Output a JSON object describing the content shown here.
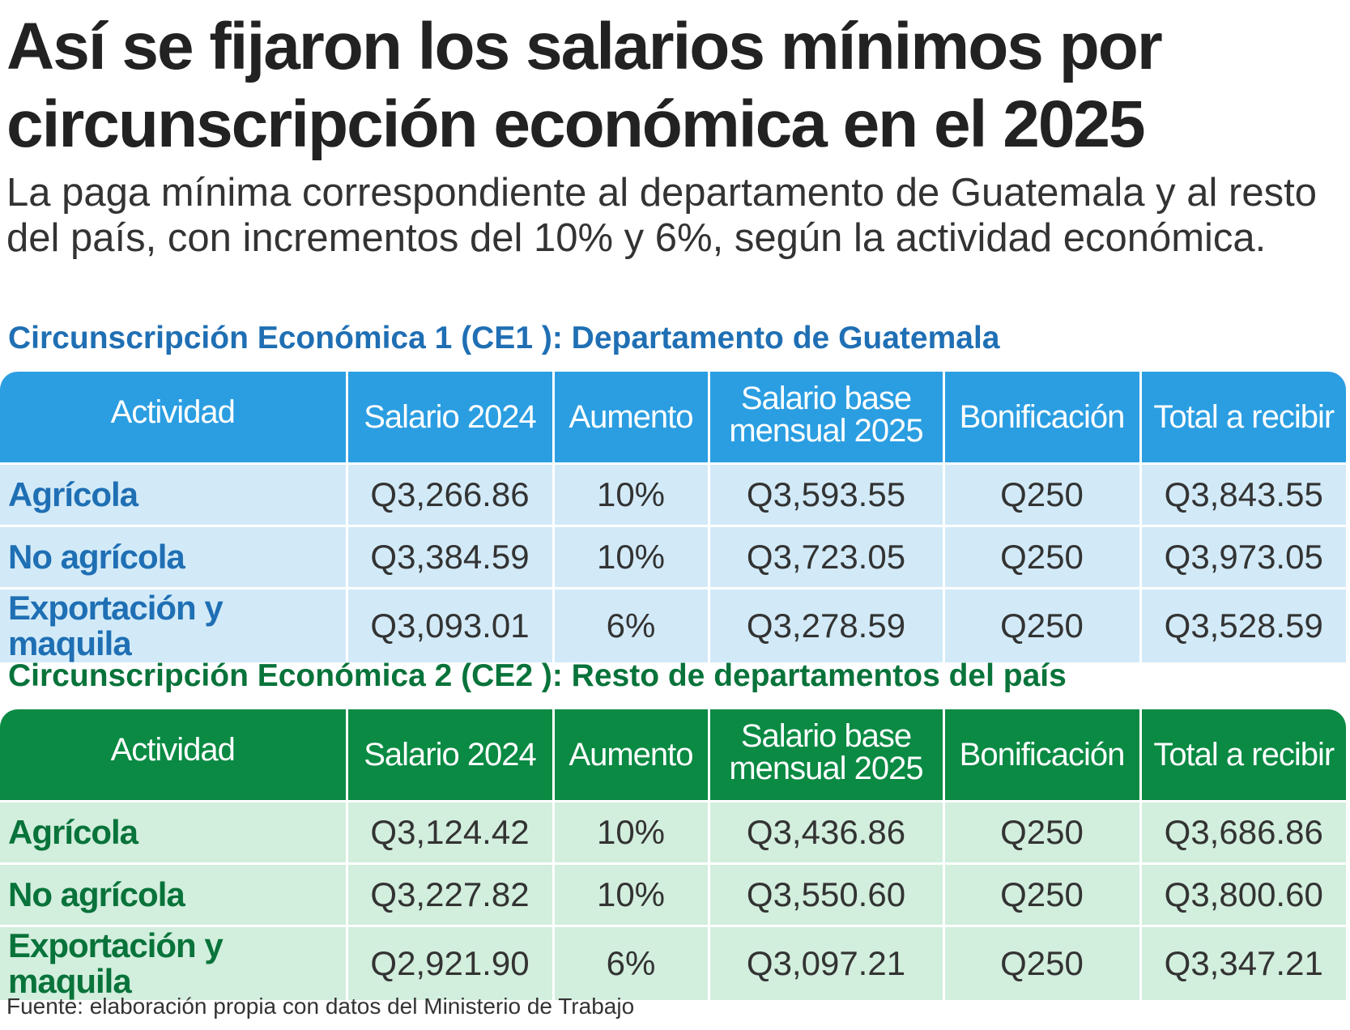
{
  "title": "Así se fijaron los salarios mínimos por circunscripción económica en el 2025",
  "subtitle": "La paga mínima correspondiente al departamento de Guatemala y al resto del país, con incrementos del 10% y 6%, según la actividad económica.",
  "headers": {
    "activity": "Actividad",
    "salary_2024": "Salario 2024",
    "increase": "Aumento",
    "base_salary_line1": "Salario base",
    "base_salary_line2": "mensual 2025",
    "bonus": "Bonificación",
    "total": "Total a recibir"
  },
  "ce1": {
    "title": "Circunscripción Económica 1 (CE1 ): Departamento de Guatemala",
    "rows": [
      {
        "activity": "Agrícola",
        "salary_2024": "Q3,266.86",
        "increase": "10%",
        "base_2025": "Q3,593.55",
        "bonus": "Q250",
        "total": "Q3,843.55"
      },
      {
        "activity": "No agrícola",
        "salary_2024": "Q3,384.59",
        "increase": "10%",
        "base_2025": "Q3,723.05",
        "bonus": "Q250",
        "total": "Q3,973.05"
      },
      {
        "activity": "Exportación y maquila",
        "salary_2024": "Q3,093.01",
        "increase": "6%",
        "base_2025": "Q3,278.59",
        "bonus": "Q250",
        "total": "Q3,528.59"
      }
    ]
  },
  "ce2": {
    "title": "Circunscripción Económica 2 (CE2 ): Resto de departamentos del país",
    "rows": [
      {
        "activity": "Agrícola",
        "salary_2024": "Q3,124.42",
        "increase": "10%",
        "base_2025": "Q3,436.86",
        "bonus": "Q250",
        "total": "Q3,686.86"
      },
      {
        "activity": "No agrícola",
        "salary_2024": "Q3,227.82",
        "increase": "10%",
        "base_2025": "Q3,550.60",
        "bonus": "Q250",
        "total": "Q3,800.60"
      },
      {
        "activity": "Exportación y maquila",
        "salary_2024": "Q2,921.90",
        "increase": "6%",
        "base_2025": "Q3,097.21",
        "bonus": "Q250",
        "total": "Q3,347.21"
      }
    ]
  },
  "source": "Fuente: elaboración propia con datos del Ministerio de Trabajo",
  "colors": {
    "ce1_header": "#2b9ee2",
    "ce1_row": "#d2eaf8",
    "ce1_text": "#1f6fb4",
    "ce2_header": "#0a8a43",
    "ce2_row": "#d2eedd",
    "ce2_text": "#08733a"
  }
}
